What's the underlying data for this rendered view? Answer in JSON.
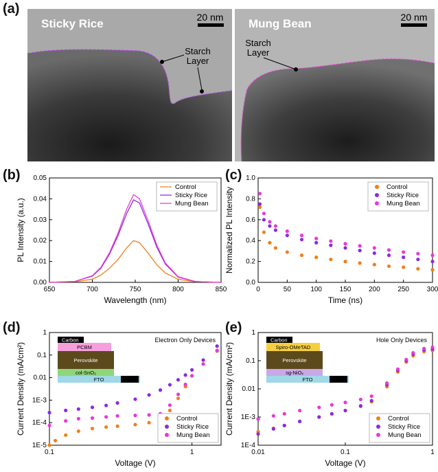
{
  "figure": {
    "panels": {
      "a": {
        "letter": "(a)",
        "images": [
          {
            "title": "Sticky Rice",
            "scalebar": "20 nm",
            "annotation": [
              "Starch",
              "Layer"
            ]
          },
          {
            "title": "Mung Bean",
            "scalebar": "20 nm",
            "annotation": [
              "Starch",
              "Layer"
            ]
          }
        ]
      },
      "b": {
        "letter": "(b)"
      },
      "c": {
        "letter": "(c)"
      },
      "d": {
        "letter": "(d)",
        "note": "Electron Only Devices",
        "stack": [
          "Carbon",
          "PCBM",
          "Perovskite",
          "col-SnO₂",
          "FTO"
        ]
      },
      "e": {
        "letter": "(e)",
        "note": "Hole Only Devices",
        "stack": [
          "Carbon",
          "Spiro-OMeTAD",
          "Perovskite",
          "sg-NiOₓ",
          "FTO"
        ]
      }
    },
    "colors": {
      "control": "#f07f1a",
      "sticky_rice": "#8a2be2",
      "mung_bean": "#e839d6"
    }
  },
  "chart_data": [
    {
      "panel": "b",
      "type": "line",
      "xlabel": "Wavelength (nm)",
      "ylabel": "PL Intensity (a.u.)",
      "xlim": [
        650,
        850
      ],
      "ylim": [
        0,
        0.05
      ],
      "xticks": [
        "650",
        "700",
        "750",
        "800",
        "850"
      ],
      "yticks": [
        "0.00",
        "0.01",
        "0.02",
        "0.03",
        "0.04",
        "0.05"
      ],
      "legend": "top-right",
      "series": [
        {
          "name": "Control",
          "color": "#f07f1a",
          "x": [
            650,
            680,
            700,
            710,
            720,
            730,
            740,
            748,
            755,
            765,
            775,
            785,
            800,
            820,
            850
          ],
          "values": [
            0,
            0.0003,
            0.0015,
            0.0035,
            0.0068,
            0.011,
            0.0165,
            0.02,
            0.019,
            0.014,
            0.0085,
            0.0045,
            0.0015,
            0.0003,
            0
          ]
        },
        {
          "name": "Sticky Rice",
          "color": "#8a2be2",
          "x": [
            650,
            680,
            700,
            710,
            720,
            730,
            740,
            748,
            755,
            765,
            775,
            785,
            800,
            820,
            850
          ],
          "values": [
            0,
            0.0005,
            0.003,
            0.0068,
            0.0135,
            0.0225,
            0.033,
            0.0395,
            0.038,
            0.028,
            0.017,
            0.0088,
            0.0025,
            0.0004,
            0
          ]
        },
        {
          "name": "Mung Bean",
          "color": "#e839d6",
          "x": [
            650,
            680,
            700,
            710,
            720,
            730,
            740,
            748,
            755,
            765,
            775,
            785,
            800,
            820,
            850
          ],
          "values": [
            0,
            0.0005,
            0.0032,
            0.0072,
            0.0142,
            0.0237,
            0.035,
            0.042,
            0.04,
            0.0295,
            0.018,
            0.0093,
            0.0027,
            0.0004,
            0
          ]
        }
      ]
    },
    {
      "panel": "c",
      "type": "scatter",
      "xlabel": "Time (ns)",
      "ylabel": "Normalized PL Intensity",
      "xlim": [
        0,
        300
      ],
      "ylim": [
        0,
        1.0
      ],
      "xticks": [
        "0",
        "50",
        "100",
        "150",
        "200",
        "250",
        "300"
      ],
      "yticks": [
        "0.0",
        "0.2",
        "0.4",
        "0.6",
        "0.8",
        "1.0"
      ],
      "legend": "top-right",
      "series": [
        {
          "name": "Control",
          "color": "#f07f1a",
          "x": [
            3,
            10,
            20,
            30,
            50,
            75,
            100,
            125,
            150,
            175,
            200,
            225,
            250,
            275,
            300
          ],
          "values": [
            0.72,
            0.48,
            0.38,
            0.33,
            0.29,
            0.26,
            0.24,
            0.22,
            0.2,
            0.185,
            0.17,
            0.155,
            0.145,
            0.13,
            0.12
          ]
        },
        {
          "name": "Sticky Rice",
          "color": "#8a2be2",
          "x": [
            3,
            10,
            20,
            30,
            50,
            75,
            100,
            125,
            150,
            175,
            200,
            225,
            250,
            275,
            300
          ],
          "values": [
            0.75,
            0.6,
            0.54,
            0.5,
            0.45,
            0.41,
            0.38,
            0.355,
            0.33,
            0.305,
            0.28,
            0.26,
            0.24,
            0.22,
            0.2
          ]
        },
        {
          "name": "Mung Bean",
          "color": "#e839d6",
          "x": [
            3,
            10,
            20,
            30,
            50,
            75,
            100,
            125,
            150,
            175,
            200,
            225,
            250,
            275,
            300
          ],
          "values": [
            0.85,
            0.66,
            0.58,
            0.54,
            0.49,
            0.45,
            0.42,
            0.395,
            0.37,
            0.35,
            0.33,
            0.31,
            0.29,
            0.275,
            0.26
          ]
        }
      ]
    },
    {
      "panel": "d",
      "type": "scatter",
      "xlabel": "Voltage (V)",
      "ylabel": "Current Density (mA/cm²)",
      "xscale": "log",
      "yscale": "log",
      "xlim": [
        0.1,
        1.6
      ],
      "ylim": [
        1e-05,
        1
      ],
      "xticks": [
        "0.1",
        "1"
      ],
      "yticks": [
        "1E-5",
        "1E-4",
        "1E-3",
        "0.01",
        "0.1",
        "1"
      ],
      "legend": "bottom-right",
      "series": [
        {
          "name": "Control",
          "color": "#f07f1a",
          "x": [
            0.1,
            0.11,
            0.13,
            0.16,
            0.2,
            0.25,
            0.3,
            0.4,
            0.5,
            0.6,
            0.7,
            0.8,
            0.9,
            1.0,
            1.2,
            1.5
          ],
          "values": [
            1e-05,
            1.6e-05,
            2.8e-05,
            4.2e-05,
            5.5e-05,
            6.4e-05,
            7e-05,
            8.2e-05,
            0.0001,
            0.00014,
            0.00035,
            0.0012,
            0.004,
            0.012,
            0.04,
            0.15
          ]
        },
        {
          "name": "Sticky Rice",
          "color": "#8a2be2",
          "x": [
            0.1,
            0.13,
            0.16,
            0.2,
            0.25,
            0.3,
            0.4,
            0.5,
            0.6,
            0.7,
            0.8,
            0.9,
            1.0,
            1.2,
            1.5
          ],
          "values": [
            0.00028,
            0.00035,
            0.0004,
            0.00048,
            0.00058,
            0.00075,
            0.0011,
            0.0017,
            0.0028,
            0.0048,
            0.008,
            0.013,
            0.022,
            0.06,
            0.25
          ]
        },
        {
          "name": "Mung Bean",
          "color": "#e839d6",
          "x": [
            0.1,
            0.13,
            0.16,
            0.2,
            0.25,
            0.3,
            0.4,
            0.5,
            0.6,
            0.7,
            0.8,
            0.9,
            1.0,
            1.2,
            1.5
          ],
          "values": [
            7.5e-05,
            0.00012,
            0.00015,
            0.00016,
            0.00018,
            0.0002,
            0.00021,
            0.00022,
            0.00025,
            0.0006,
            0.0018,
            0.005,
            0.012,
            0.04,
            0.16
          ]
        }
      ]
    },
    {
      "panel": "e",
      "type": "scatter",
      "xlabel": "Voltage (V)",
      "ylabel": "Current Density (mA/cm²)",
      "xscale": "log",
      "yscale": "log",
      "xlim": [
        0.01,
        1
      ],
      "ylim": [
        0.0001,
        1
      ],
      "xticks": [
        "0.01",
        "0.1",
        "1"
      ],
      "yticks": [
        "1E-4",
        "1E-3",
        "0.01",
        "0.1",
        "1"
      ],
      "legend": "bottom-right",
      "series": [
        {
          "name": "Control",
          "color": "#f07f1a",
          "x": [
            0.01,
            0.015,
            0.02,
            0.03,
            0.05,
            0.07,
            0.1,
            0.15,
            0.2,
            0.3,
            0.4,
            0.5,
            0.6,
            0.8,
            1.0
          ],
          "values": [
            0.0003,
            0.0004,
            0.0005,
            0.0007,
            0.001,
            0.0013,
            0.0017,
            0.0024,
            0.0035,
            0.012,
            0.04,
            0.09,
            0.15,
            0.21,
            0.23
          ]
        },
        {
          "name": "Sticky Rice",
          "color": "#8a2be2",
          "x": [
            0.01,
            0.015,
            0.02,
            0.03,
            0.05,
            0.07,
            0.1,
            0.15,
            0.2,
            0.3,
            0.4,
            0.5,
            0.6,
            0.8,
            1.0
          ],
          "values": [
            0.00025,
            0.00038,
            0.0005,
            0.0007,
            0.001,
            0.0013,
            0.0017,
            0.0025,
            0.0038,
            0.014,
            0.045,
            0.1,
            0.17,
            0.24,
            0.26
          ]
        },
        {
          "name": "Mung Bean",
          "color": "#e839d6",
          "x": [
            0.01,
            0.015,
            0.02,
            0.03,
            0.05,
            0.07,
            0.1,
            0.15,
            0.2,
            0.3,
            0.4,
            0.5,
            0.6,
            0.8,
            1.0
          ],
          "values": [
            0.00085,
            0.0011,
            0.0013,
            0.0017,
            0.0022,
            0.0027,
            0.0033,
            0.0042,
            0.0055,
            0.016,
            0.05,
            0.11,
            0.19,
            0.27,
            0.3
          ]
        }
      ]
    }
  ]
}
